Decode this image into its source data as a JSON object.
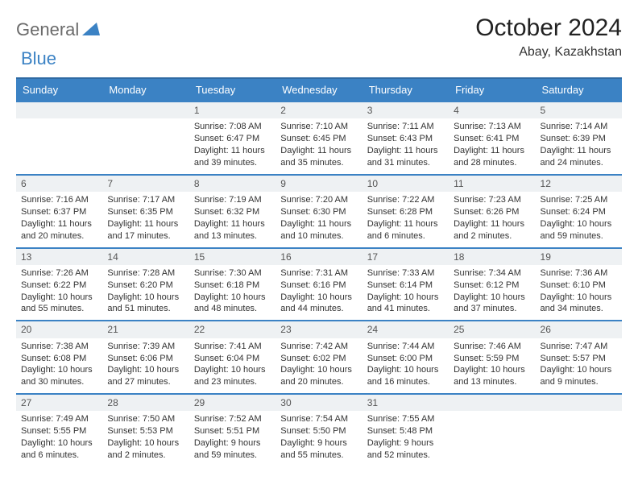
{
  "logo": {
    "text1": "General",
    "text2": "Blue"
  },
  "title": "October 2024",
  "subtitle": "Abay, Kazakhstan",
  "colors": {
    "header_bg": "#3b82c4",
    "header_border": "#2f6aa3",
    "daynum_bg": "#eef1f3",
    "row_border": "#3b82c4",
    "text": "#333333",
    "logo_gray": "#6b6b6b",
    "logo_blue": "#3b82c4"
  },
  "day_labels": [
    "Sunday",
    "Monday",
    "Tuesday",
    "Wednesday",
    "Thursday",
    "Friday",
    "Saturday"
  ],
  "weeks": [
    [
      null,
      null,
      {
        "n": "1",
        "sr": "7:08 AM",
        "ss": "6:47 PM",
        "dl": "11 hours and 39 minutes."
      },
      {
        "n": "2",
        "sr": "7:10 AM",
        "ss": "6:45 PM",
        "dl": "11 hours and 35 minutes."
      },
      {
        "n": "3",
        "sr": "7:11 AM",
        "ss": "6:43 PM",
        "dl": "11 hours and 31 minutes."
      },
      {
        "n": "4",
        "sr": "7:13 AM",
        "ss": "6:41 PM",
        "dl": "11 hours and 28 minutes."
      },
      {
        "n": "5",
        "sr": "7:14 AM",
        "ss": "6:39 PM",
        "dl": "11 hours and 24 minutes."
      }
    ],
    [
      {
        "n": "6",
        "sr": "7:16 AM",
        "ss": "6:37 PM",
        "dl": "11 hours and 20 minutes."
      },
      {
        "n": "7",
        "sr": "7:17 AM",
        "ss": "6:35 PM",
        "dl": "11 hours and 17 minutes."
      },
      {
        "n": "8",
        "sr": "7:19 AM",
        "ss": "6:32 PM",
        "dl": "11 hours and 13 minutes."
      },
      {
        "n": "9",
        "sr": "7:20 AM",
        "ss": "6:30 PM",
        "dl": "11 hours and 10 minutes."
      },
      {
        "n": "10",
        "sr": "7:22 AM",
        "ss": "6:28 PM",
        "dl": "11 hours and 6 minutes."
      },
      {
        "n": "11",
        "sr": "7:23 AM",
        "ss": "6:26 PM",
        "dl": "11 hours and 2 minutes."
      },
      {
        "n": "12",
        "sr": "7:25 AM",
        "ss": "6:24 PM",
        "dl": "10 hours and 59 minutes."
      }
    ],
    [
      {
        "n": "13",
        "sr": "7:26 AM",
        "ss": "6:22 PM",
        "dl": "10 hours and 55 minutes."
      },
      {
        "n": "14",
        "sr": "7:28 AM",
        "ss": "6:20 PM",
        "dl": "10 hours and 51 minutes."
      },
      {
        "n": "15",
        "sr": "7:30 AM",
        "ss": "6:18 PM",
        "dl": "10 hours and 48 minutes."
      },
      {
        "n": "16",
        "sr": "7:31 AM",
        "ss": "6:16 PM",
        "dl": "10 hours and 44 minutes."
      },
      {
        "n": "17",
        "sr": "7:33 AM",
        "ss": "6:14 PM",
        "dl": "10 hours and 41 minutes."
      },
      {
        "n": "18",
        "sr": "7:34 AM",
        "ss": "6:12 PM",
        "dl": "10 hours and 37 minutes."
      },
      {
        "n": "19",
        "sr": "7:36 AM",
        "ss": "6:10 PM",
        "dl": "10 hours and 34 minutes."
      }
    ],
    [
      {
        "n": "20",
        "sr": "7:38 AM",
        "ss": "6:08 PM",
        "dl": "10 hours and 30 minutes."
      },
      {
        "n": "21",
        "sr": "7:39 AM",
        "ss": "6:06 PM",
        "dl": "10 hours and 27 minutes."
      },
      {
        "n": "22",
        "sr": "7:41 AM",
        "ss": "6:04 PM",
        "dl": "10 hours and 23 minutes."
      },
      {
        "n": "23",
        "sr": "7:42 AM",
        "ss": "6:02 PM",
        "dl": "10 hours and 20 minutes."
      },
      {
        "n": "24",
        "sr": "7:44 AM",
        "ss": "6:00 PM",
        "dl": "10 hours and 16 minutes."
      },
      {
        "n": "25",
        "sr": "7:46 AM",
        "ss": "5:59 PM",
        "dl": "10 hours and 13 minutes."
      },
      {
        "n": "26",
        "sr": "7:47 AM",
        "ss": "5:57 PM",
        "dl": "10 hours and 9 minutes."
      }
    ],
    [
      {
        "n": "27",
        "sr": "7:49 AM",
        "ss": "5:55 PM",
        "dl": "10 hours and 6 minutes."
      },
      {
        "n": "28",
        "sr": "7:50 AM",
        "ss": "5:53 PM",
        "dl": "10 hours and 2 minutes."
      },
      {
        "n": "29",
        "sr": "7:52 AM",
        "ss": "5:51 PM",
        "dl": "9 hours and 59 minutes."
      },
      {
        "n": "30",
        "sr": "7:54 AM",
        "ss": "5:50 PM",
        "dl": "9 hours and 55 minutes."
      },
      {
        "n": "31",
        "sr": "7:55 AM",
        "ss": "5:48 PM",
        "dl": "9 hours and 52 minutes."
      },
      null,
      null
    ]
  ],
  "labels": {
    "sunrise": "Sunrise:",
    "sunset": "Sunset:",
    "daylight": "Daylight:"
  }
}
